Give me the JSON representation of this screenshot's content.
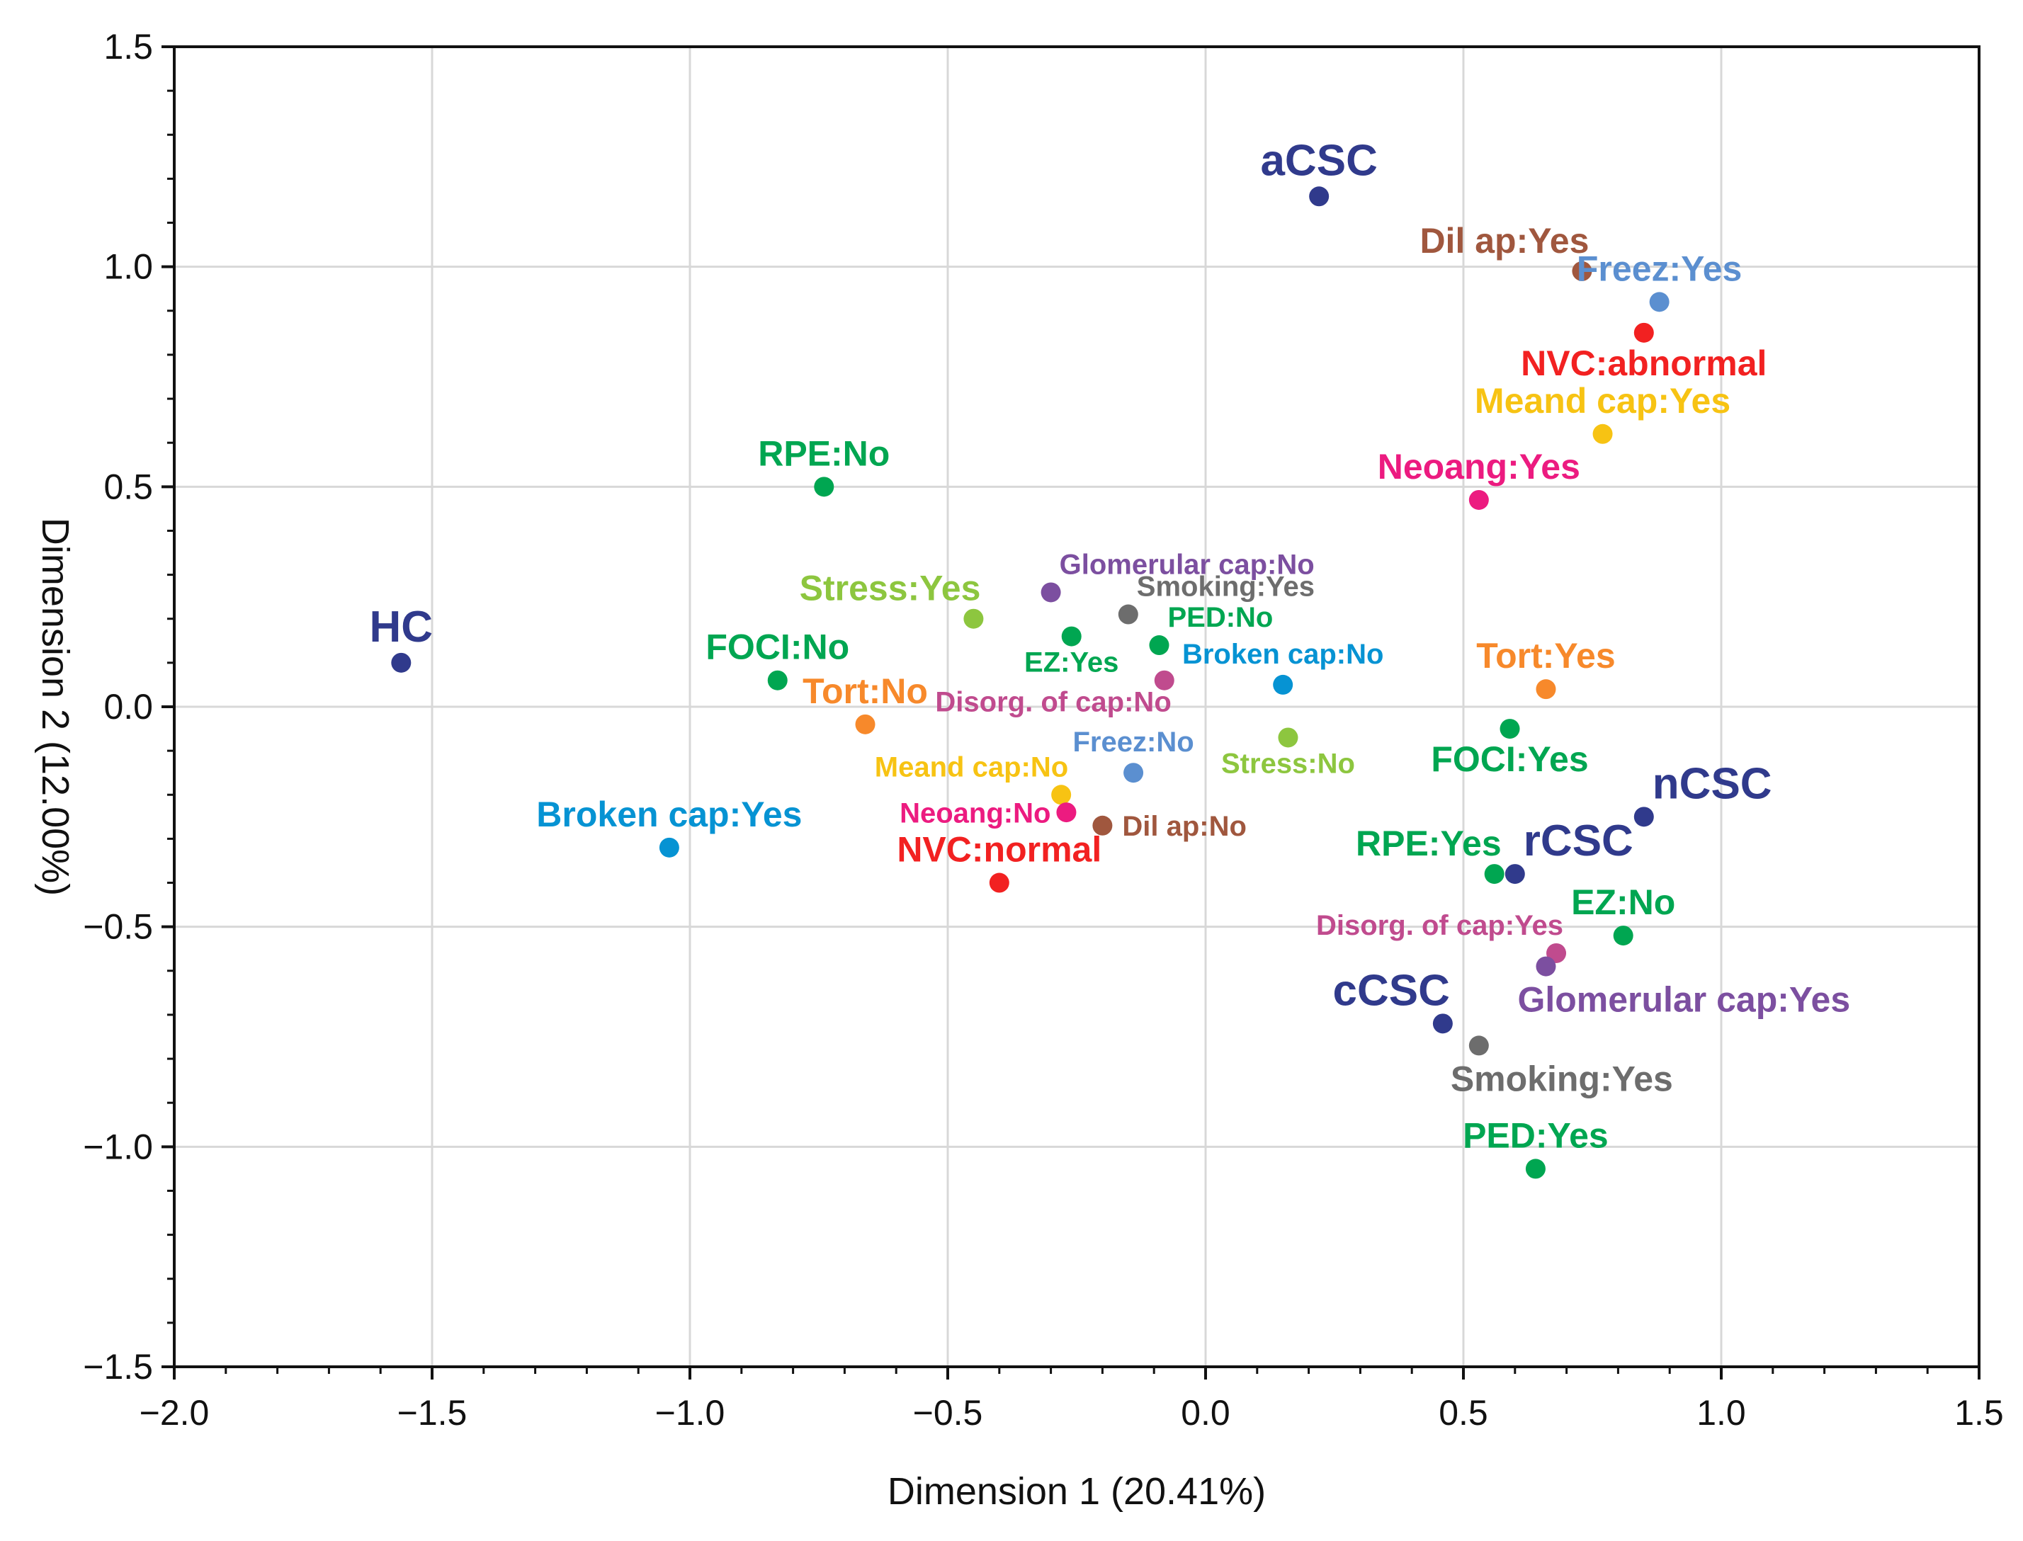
{
  "chart_data": {
    "type": "scatter",
    "title": "",
    "xlabel": "Dimension 1 (20.41%)",
    "ylabel": "Dimension 2 (12.00%)",
    "xlim": [
      -2.0,
      1.5
    ],
    "ylim": [
      -1.5,
      1.5
    ],
    "grid": true,
    "x_ticks": [
      "−2.0",
      "−1.5",
      "−1.0",
      "−0.5",
      "0.0",
      "0.5",
      "1.0",
      "1.5"
    ],
    "y_ticks": [
      "1.5",
      "1.0",
      "0.5",
      "0.0",
      "−0.5",
      "−1.0",
      "−1.5"
    ],
    "points": [
      {
        "label": "aCSC",
        "x": 0.22,
        "y": 1.16,
        "color": "#303a8c",
        "size": "large",
        "anchor": "above-center"
      },
      {
        "label": "HC",
        "x": -1.56,
        "y": 0.1,
        "color": "#303a8c",
        "size": "large",
        "anchor": "above-center"
      },
      {
        "label": "nCSC",
        "x": 0.85,
        "y": -0.25,
        "color": "#303a8c",
        "size": "large",
        "anchor": "above-right"
      },
      {
        "label": "rCSC",
        "x": 0.6,
        "y": -0.38,
        "color": "#303a8c",
        "size": "large",
        "anchor": "above-right"
      },
      {
        "label": "cCSC",
        "x": 0.46,
        "y": -0.72,
        "color": "#303a8c",
        "size": "large",
        "anchor": "above-left"
      },
      {
        "label": "Dil ap:Yes",
        "x": 0.73,
        "y": 0.99,
        "color": "#a0573e",
        "size": "medium",
        "anchor": "above-left"
      },
      {
        "label": "Freez:Yes",
        "x": 0.88,
        "y": 0.92,
        "color": "#5b8fd0",
        "size": "medium",
        "anchor": "above-center"
      },
      {
        "label": "NVC:abnormal",
        "x": 0.85,
        "y": 0.85,
        "color": "#f22121",
        "size": "medium",
        "anchor": "below-center"
      },
      {
        "label": "Meand cap:Yes",
        "x": 0.77,
        "y": 0.62,
        "color": "#f7c313",
        "size": "medium",
        "anchor": "above-center"
      },
      {
        "label": "Neoang:Yes",
        "x": 0.53,
        "y": 0.47,
        "color": "#ec1b80",
        "size": "medium",
        "anchor": "above-center"
      },
      {
        "label": "RPE:No",
        "x": -0.74,
        "y": 0.5,
        "color": "#00a651",
        "size": "medium",
        "anchor": "above-center"
      },
      {
        "label": "Glomerular cap:No",
        "x": -0.3,
        "y": 0.26,
        "color": "#7c4fa0",
        "size": "small",
        "anchor": "above-right"
      },
      {
        "label": "Smoking:Yes",
        "x": -0.15,
        "y": 0.21,
        "color": "#6d6d6d",
        "size": "small",
        "anchor": "above-right"
      },
      {
        "label": "Stress:Yes",
        "x": -0.45,
        "y": 0.2,
        "color": "#8dc63f",
        "size": "medium",
        "anchor": "above-left"
      },
      {
        "label": "PED:No",
        "x": -0.09,
        "y": 0.14,
        "color": "#00a651",
        "size": "small",
        "anchor": "above-right"
      },
      {
        "label": "EZ:Yes",
        "x": -0.26,
        "y": 0.16,
        "color": "#00a651",
        "size": "small",
        "anchor": "below-center"
      },
      {
        "label": "FOCI:No",
        "x": -0.83,
        "y": 0.06,
        "color": "#00a651",
        "size": "medium",
        "anchor": "above-center"
      },
      {
        "label": "Broken cap:No",
        "x": 0.15,
        "y": 0.05,
        "color": "#0693d3",
        "size": "small",
        "anchor": "above-center"
      },
      {
        "label": "Disorg. of cap:No",
        "x": -0.08,
        "y": 0.06,
        "color": "#c04b8e",
        "size": "small",
        "anchor": "below-left"
      },
      {
        "label": "Tort:No",
        "x": -0.66,
        "y": -0.04,
        "color": "#f7892b",
        "size": "medium",
        "anchor": "above-center"
      },
      {
        "label": "Tort:Yes",
        "x": 0.66,
        "y": 0.04,
        "color": "#f7892b",
        "size": "medium",
        "anchor": "above-center"
      },
      {
        "label": "FOCI:Yes",
        "x": 0.59,
        "y": -0.05,
        "color": "#00a651",
        "size": "medium",
        "anchor": "below-center"
      },
      {
        "label": "Stress:No",
        "x": 0.16,
        "y": -0.07,
        "color": "#8dc63f",
        "size": "small",
        "anchor": "below-center"
      },
      {
        "label": "Freez:No",
        "x": -0.14,
        "y": -0.15,
        "color": "#5b8fd0",
        "size": "small",
        "anchor": "above-center"
      },
      {
        "label": "Meand cap:No",
        "x": -0.28,
        "y": -0.2,
        "color": "#f7c313",
        "size": "small",
        "anchor": "above-left"
      },
      {
        "label": "Neoang:No",
        "x": -0.27,
        "y": -0.24,
        "color": "#ec1b80",
        "size": "small",
        "anchor": "left"
      },
      {
        "label": "Dil ap:No",
        "x": -0.2,
        "y": -0.27,
        "color": "#a0573e",
        "size": "small",
        "anchor": "right"
      },
      {
        "label": "Broken cap:Yes",
        "x": -1.04,
        "y": -0.32,
        "color": "#0693d3",
        "size": "medium",
        "anchor": "above-center"
      },
      {
        "label": "NVC:normal",
        "x": -0.4,
        "y": -0.4,
        "color": "#f22121",
        "size": "medium",
        "anchor": "above-center"
      },
      {
        "label": "RPE:Yes",
        "x": 0.56,
        "y": -0.38,
        "color": "#00a651",
        "size": "medium",
        "anchor": "above-left"
      },
      {
        "label": "EZ:No",
        "x": 0.81,
        "y": -0.52,
        "color": "#00a651",
        "size": "medium",
        "anchor": "above-center"
      },
      {
        "label": "Disorg. of cap:Yes",
        "x": 0.68,
        "y": -0.56,
        "color": "#c04b8e",
        "size": "small",
        "anchor": "above-left"
      },
      {
        "label": "Glomerular cap:Yes",
        "x": 0.66,
        "y": -0.59,
        "color": "#7c4fa0",
        "size": "medium",
        "anchor": "below-right"
      },
      {
        "label": "Smoking:Yes",
        "x": 0.53,
        "y": -0.77,
        "color": "#6d6d6d",
        "size": "medium",
        "anchor": "below-right"
      },
      {
        "label": "PED:Yes",
        "x": 0.64,
        "y": -1.05,
        "color": "#00a651",
        "size": "medium",
        "anchor": "above-center"
      }
    ]
  }
}
